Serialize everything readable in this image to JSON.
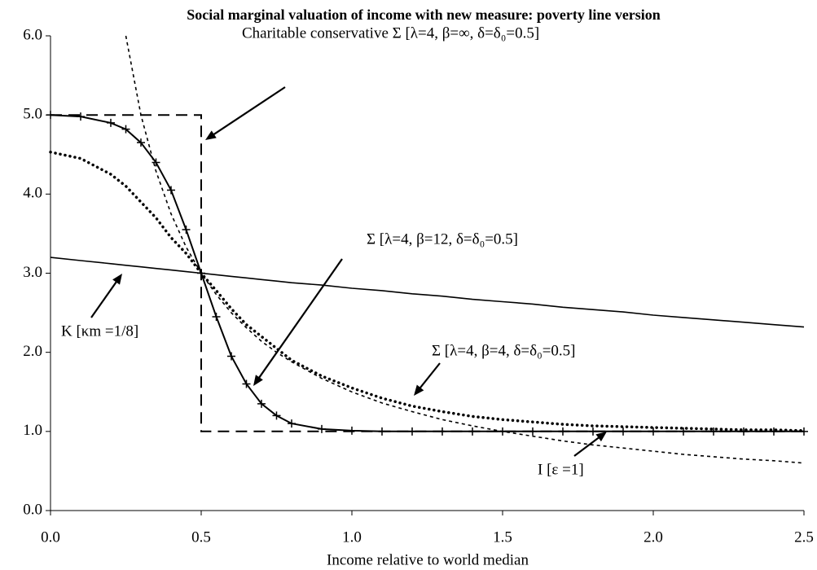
{
  "chart_data": {
    "type": "line",
    "title": "Social marginal valuation of income with new measure: poverty line version",
    "x_label": "Income relative to world median",
    "xlim": [
      0,
      2.5
    ],
    "xticks": [
      {
        "value": 0,
        "label": "0.0"
      },
      0.5,
      {
        "value": 1,
        "label": "1.0"
      },
      1.5,
      {
        "value": 2,
        "label": "2.0"
      },
      2.5
    ],
    "ylim": [
      0,
      6
    ],
    "yticks": [
      {
        "value": 0,
        "label": "0.0"
      },
      {
        "value": 1,
        "label": "1.0"
      },
      {
        "value": 2,
        "label": "2.0"
      },
      {
        "value": 3,
        "label": "3.0"
      },
      {
        "value": 4,
        "label": "4.0"
      },
      {
        "value": 5,
        "label": "5.0"
      },
      {
        "value": 6,
        "label": "6.0"
      }
    ],
    "grid": false,
    "legend": false,
    "x": [
      0,
      0.1,
      0.2,
      0.25,
      0.3,
      0.35,
      0.4,
      0.45,
      0.5,
      0.55,
      0.6,
      0.65,
      0.7,
      0.75,
      0.8,
      0.9,
      1.0,
      1.1,
      1.2,
      1.3,
      1.4,
      1.5,
      1.6,
      1.7,
      1.8,
      1.9,
      2.0,
      2.1,
      2.2,
      2.3,
      2.4,
      2.5
    ],
    "series": [
      {
        "name": "Charitable conservative Σ [λ=4, β=∞, δ=δ₀=0.5]",
        "color": "#000",
        "style": "dashed",
        "x": [
          0,
          0.5,
          0.5,
          2.5
        ],
        "values": [
          5,
          5,
          1,
          1
        ]
      },
      {
        "name": "Σ [λ=4, β=12, δ=δ₀=0.5]",
        "color": "#000",
        "style": "plus",
        "values": [
          5,
          4.98,
          4.9,
          4.82,
          4.65,
          4.4,
          4.05,
          3.55,
          3,
          2.45,
          1.95,
          1.6,
          1.35,
          1.2,
          1.1,
          1.03,
          1.01,
          1,
          1,
          1,
          1,
          1,
          1,
          1,
          1,
          1,
          1,
          1,
          1,
          1,
          1,
          1
        ]
      },
      {
        "name": "Σ [λ=4, β=4, δ=δ₀=0.5]",
        "color": "#000",
        "style": "dotted",
        "values": [
          4.53,
          4.45,
          4.25,
          4.1,
          3.9,
          3.7,
          3.45,
          3.25,
          3,
          2.78,
          2.55,
          2.35,
          2.2,
          2.05,
          1.9,
          1.7,
          1.55,
          1.42,
          1.32,
          1.25,
          1.19,
          1.15,
          1.12,
          1.09,
          1.07,
          1.06,
          1.05,
          1.04,
          1.03,
          1.02,
          1.02,
          1.01
        ]
      },
      {
        "name": "K [κm =1/8]",
        "color": "#000",
        "style": "solid",
        "values": [
          3.2,
          3.16,
          3.12,
          3.1,
          3.08,
          3.06,
          3.04,
          3.02,
          3.0,
          2.98,
          2.96,
          2.94,
          2.92,
          2.9,
          2.88,
          2.85,
          2.81,
          2.78,
          2.74,
          2.71,
          2.67,
          2.64,
          2.61,
          2.57,
          2.54,
          2.51,
          2.47,
          2.44,
          2.41,
          2.38,
          2.35,
          2.32
        ]
      },
      {
        "name": "I [ε =1]",
        "color": "#000",
        "style": "finedash",
        "values": [
          null,
          null,
          null,
          6,
          5,
          4.29,
          3.75,
          3.33,
          3,
          2.73,
          2.5,
          2.31,
          2.14,
          2,
          1.88,
          1.67,
          1.5,
          1.36,
          1.25,
          1.15,
          1.07,
          1,
          0.94,
          0.88,
          0.83,
          0.79,
          0.75,
          0.71,
          0.68,
          0.65,
          0.63,
          0.6
        ]
      }
    ]
  }
}
